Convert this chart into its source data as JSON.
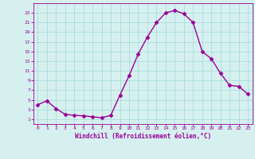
{
  "x": [
    0,
    1,
    2,
    3,
    4,
    5,
    6,
    7,
    8,
    9,
    10,
    11,
    12,
    13,
    14,
    15,
    16,
    17,
    18,
    19,
    20,
    21,
    22,
    23
  ],
  "y": [
    4.0,
    4.8,
    3.2,
    2.0,
    1.8,
    1.7,
    1.5,
    1.3,
    1.8,
    6.0,
    10.0,
    14.5,
    18.0,
    21.0,
    23.0,
    23.5,
    22.8,
    21.0,
    15.0,
    13.5,
    10.5,
    8.0,
    7.8,
    6.2
  ],
  "line_color": "#990099",
  "marker": "D",
  "marker_size": 2.5,
  "bg_color": "#d6f0f0",
  "grid_color": "#aadddd",
  "xlabel": "Windchill (Refroidissement éolien,°C)",
  "xlabel_color": "#990099",
  "tick_color": "#990099",
  "ylim": [
    0,
    25
  ],
  "xlim": [
    -0.5,
    23.5
  ],
  "yticks": [
    1,
    3,
    5,
    7,
    9,
    11,
    13,
    15,
    17,
    19,
    21,
    23
  ],
  "xticks": [
    0,
    1,
    2,
    3,
    4,
    5,
    6,
    7,
    8,
    9,
    10,
    11,
    12,
    13,
    14,
    15,
    16,
    17,
    18,
    19,
    20,
    21,
    22,
    23
  ]
}
